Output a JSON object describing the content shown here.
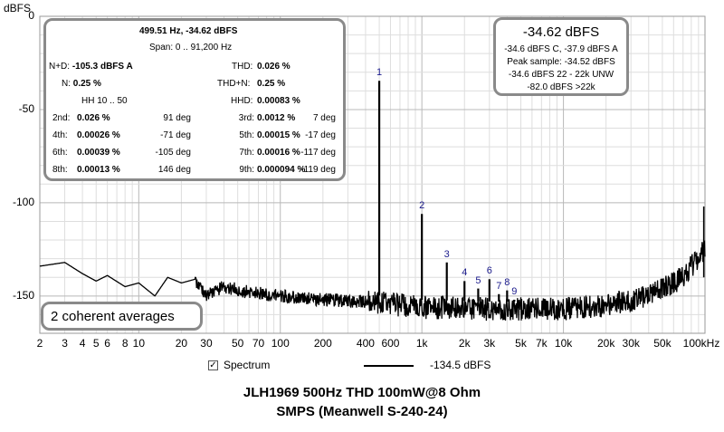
{
  "chart_data": {
    "type": "line",
    "ylabel": "dBFS",
    "x_scale": "log",
    "xlim": [
      2,
      100000
    ],
    "ylim": [
      -170,
      0
    ],
    "x_ticks": [
      {
        "v": 2,
        "label": "2"
      },
      {
        "v": 3,
        "label": "3"
      },
      {
        "v": 4,
        "label": "4"
      },
      {
        "v": 5,
        "label": "5"
      },
      {
        "v": 6,
        "label": "6"
      },
      {
        "v": 8,
        "label": "8"
      },
      {
        "v": 10,
        "label": "10"
      },
      {
        "v": 20,
        "label": "20"
      },
      {
        "v": 30,
        "label": "30"
      },
      {
        "v": 50,
        "label": "50"
      },
      {
        "v": 70,
        "label": "70"
      },
      {
        "v": 100,
        "label": "100"
      },
      {
        "v": 200,
        "label": "200"
      },
      {
        "v": 400,
        "label": "400"
      },
      {
        "v": 600,
        "label": "600"
      },
      {
        "v": 1000,
        "label": "1k"
      },
      {
        "v": 2000,
        "label": "2k"
      },
      {
        "v": 3000,
        "label": "3k"
      },
      {
        "v": 5000,
        "label": "5k"
      },
      {
        "v": 7000,
        "label": "7k"
      },
      {
        "v": 10000,
        "label": "10k"
      },
      {
        "v": 20000,
        "label": "20k"
      },
      {
        "v": 30000,
        "label": "30k"
      },
      {
        "v": 50000,
        "label": "50k"
      },
      {
        "v": 100000,
        "label": "100kHz"
      }
    ],
    "y_ticks": [
      {
        "v": 0,
        "label": "0"
      },
      {
        "v": -50,
        "label": "-50"
      },
      {
        "v": -100,
        "label": "-100"
      },
      {
        "v": -150,
        "label": "-150"
      }
    ],
    "grid": true,
    "series": [
      {
        "name": "Spectrum",
        "color": "#000000",
        "noise_floor_points": [
          [
            2,
            -134
          ],
          [
            3,
            -132
          ],
          [
            4,
            -138
          ],
          [
            5,
            -142
          ],
          [
            6,
            -139
          ],
          [
            8,
            -145
          ],
          [
            10,
            -143
          ],
          [
            13,
            -150
          ],
          [
            16,
            -140
          ],
          [
            20,
            -143
          ],
          [
            25,
            -141
          ],
          [
            30,
            -150
          ],
          [
            40,
            -145
          ],
          [
            60,
            -148
          ],
          [
            100,
            -150
          ],
          [
            200,
            -152
          ],
          [
            400,
            -153
          ],
          [
            1000,
            -156
          ],
          [
            3000,
            -157
          ],
          [
            10000,
            -157
          ],
          [
            20000,
            -155
          ],
          [
            40000,
            -150
          ],
          [
            70000,
            -140
          ],
          [
            100000,
            -125
          ]
        ],
        "peaks": [
          {
            "label": "1",
            "x": 500,
            "y": -34.6
          },
          {
            "label": "2",
            "x": 1000,
            "y": -106
          },
          {
            "label": "3",
            "x": 1500,
            "y": -132
          },
          {
            "label": "4",
            "x": 2000,
            "y": -142
          },
          {
            "label": "5",
            "x": 2500,
            "y": -146
          },
          {
            "label": "6",
            "x": 3000,
            "y": -141
          },
          {
            "label": "7",
            "x": 3500,
            "y": -149
          },
          {
            "label": "8",
            "x": 4000,
            "y": -147
          },
          {
            "label": "9",
            "x": 4500,
            "y": -152
          }
        ],
        "end_spike": {
          "x": 98000,
          "y": -102
        }
      }
    ]
  },
  "info_box": {
    "header": "499.51 Hz, -34.62 dBFS",
    "span": "Span: 0 .. 91,200 Hz",
    "nd_label": "N+D:",
    "nd_value": "-105.3 dBFS A",
    "thd_label": "THD:",
    "thd_value": "0.026 %",
    "n_label": "N:",
    "n_value": "0.25 %",
    "thdn_label": "THD+N:",
    "thdn_value": "0.25 %",
    "hh_label": "HH 10 .. 50",
    "hhd_label": "HHD:",
    "hhd_value": "0.00083 %",
    "harmonics": [
      {
        "l1": "2nd:",
        "v1": "0.026 %",
        "d1": "91 deg",
        "l2": "3rd:",
        "v2": "0.0012 %",
        "d2": "7 deg"
      },
      {
        "l1": "4th:",
        "v1": "0.00026 %",
        "d1": "-71 deg",
        "l2": "5th:",
        "v2": "0.00015 %",
        "d2": "-17 deg"
      },
      {
        "l1": "6th:",
        "v1": "0.00039 %",
        "d1": "-105 deg",
        "l2": "7th:",
        "v2": "0.00016 %",
        "d2": "-117 deg"
      },
      {
        "l1": "8th:",
        "v1": "0.00013 %",
        "d1": "146 deg",
        "l2": "9th:",
        "v2": "0.000094 %",
        "d2": "-119 deg"
      }
    ]
  },
  "level_box": {
    "main": "-34.62 dBFS",
    "line1": "-34.6 dBFS C, -37.9 dBFS A",
    "line2": "Peak sample: -34.52 dBFS",
    "line3": "-34.6 dBFS 22 - 22k UNW",
    "line4": "-82.0 dBFS >22k"
  },
  "avg_box": {
    "text": "2 coherent averages"
  },
  "legend": {
    "checkbox_mark": "✓",
    "label": "Spectrum",
    "value": "-134.5 dBFS"
  },
  "title_line1": "JLH1969 500Hz THD 100mW@8 Ohm",
  "title_line2": "SMPS (Meanwell S-240-24)"
}
